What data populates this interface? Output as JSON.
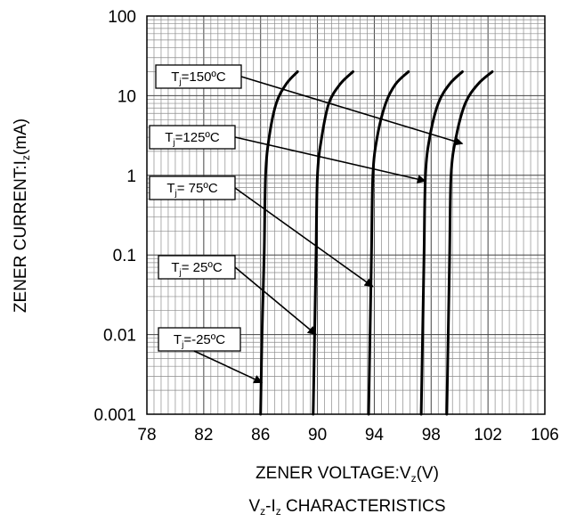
{
  "chart_data": {
    "type": "line",
    "title": "V_z-I_z CHARACTERISTICS",
    "title_main": "V",
    "title_sub1": "z",
    "title_mid": "-I",
    "title_sub2": "z",
    "title_rest": " CHARACTERISTICS",
    "xlabel_main": "ZENER VOLTAGE:V",
    "xlabel_sub": "z",
    "xlabel_rest": "(V)",
    "ylabel_main": "ZENER CURRENT:I",
    "ylabel_sub": "z",
    "ylabel_rest": "(mA)",
    "x_scale": "linear",
    "y_scale": "log",
    "xlim": [
      78,
      106
    ],
    "ylim": [
      0.001,
      100
    ],
    "x_ticks": [
      78,
      82,
      86,
      90,
      94,
      98,
      102,
      106
    ],
    "x_tick_labels": [
      "78",
      "82",
      "86",
      "90",
      "94",
      "98",
      "102",
      "106"
    ],
    "y_ticks": [
      0.001,
      0.01,
      0.1,
      1,
      10,
      100
    ],
    "y_tick_labels": [
      "0.001",
      "0.01",
      "0.1",
      "1",
      "10",
      "100"
    ],
    "grid": true,
    "series": [
      {
        "name": "Tj=-25ºC",
        "points": [
          [
            86.0,
            0.001
          ],
          [
            86.1,
            0.01
          ],
          [
            86.25,
            0.1
          ],
          [
            86.35,
            1
          ],
          [
            86.6,
            3
          ],
          [
            87.1,
            8
          ],
          [
            87.8,
            14
          ],
          [
            88.6,
            20
          ]
        ]
      },
      {
        "name": "Tj=25ºC",
        "points": [
          [
            89.7,
            0.001
          ],
          [
            89.8,
            0.01
          ],
          [
            89.9,
            0.1
          ],
          [
            90.0,
            1
          ],
          [
            90.3,
            3
          ],
          [
            90.8,
            8
          ],
          [
            91.6,
            14
          ],
          [
            92.5,
            20
          ]
        ]
      },
      {
        "name": "Tj=75ºC",
        "points": [
          [
            93.6,
            0.001
          ],
          [
            93.7,
            0.01
          ],
          [
            93.8,
            0.1
          ],
          [
            93.9,
            1
          ],
          [
            94.2,
            3
          ],
          [
            94.8,
            8
          ],
          [
            95.5,
            14
          ],
          [
            96.4,
            20
          ]
        ]
      },
      {
        "name": "Tj=125ºC",
        "points": [
          [
            97.3,
            0.001
          ],
          [
            97.4,
            0.01
          ],
          [
            97.5,
            0.1
          ],
          [
            97.6,
            1
          ],
          [
            97.9,
            3
          ],
          [
            98.5,
            8
          ],
          [
            99.3,
            14
          ],
          [
            100.2,
            20
          ]
        ]
      },
      {
        "name": "Tj=150ºC",
        "points": [
          [
            99.1,
            0.001
          ],
          [
            99.2,
            0.01
          ],
          [
            99.3,
            0.1
          ],
          [
            99.4,
            1
          ],
          [
            99.75,
            3
          ],
          [
            100.4,
            8
          ],
          [
            101.3,
            14
          ],
          [
            102.3,
            20
          ]
        ]
      }
    ],
    "annotations": [
      {
        "label_main": "T",
        "label_sub": "j",
        "label_rest": "=150ºC",
        "target": [
          100.2,
          2.5
        ]
      },
      {
        "label_main": "T",
        "label_sub": "j",
        "label_rest": "=125ºC",
        "target": [
          97.6,
          0.85
        ]
      },
      {
        "label_main": "T",
        "label_sub": "j",
        "label_rest": "= 75ºC",
        "target": [
          93.9,
          0.04
        ]
      },
      {
        "label_main": "T",
        "label_sub": "j",
        "label_rest": "= 25ºC",
        "target": [
          89.9,
          0.01
        ]
      },
      {
        "label_main": "T",
        "label_sub": "j",
        "label_rest": "=-25ºC",
        "target": [
          86.1,
          0.0025
        ]
      }
    ],
    "colors": {
      "line": "#000000",
      "grid": "#8c8c8c",
      "frame": "#000000"
    }
  }
}
